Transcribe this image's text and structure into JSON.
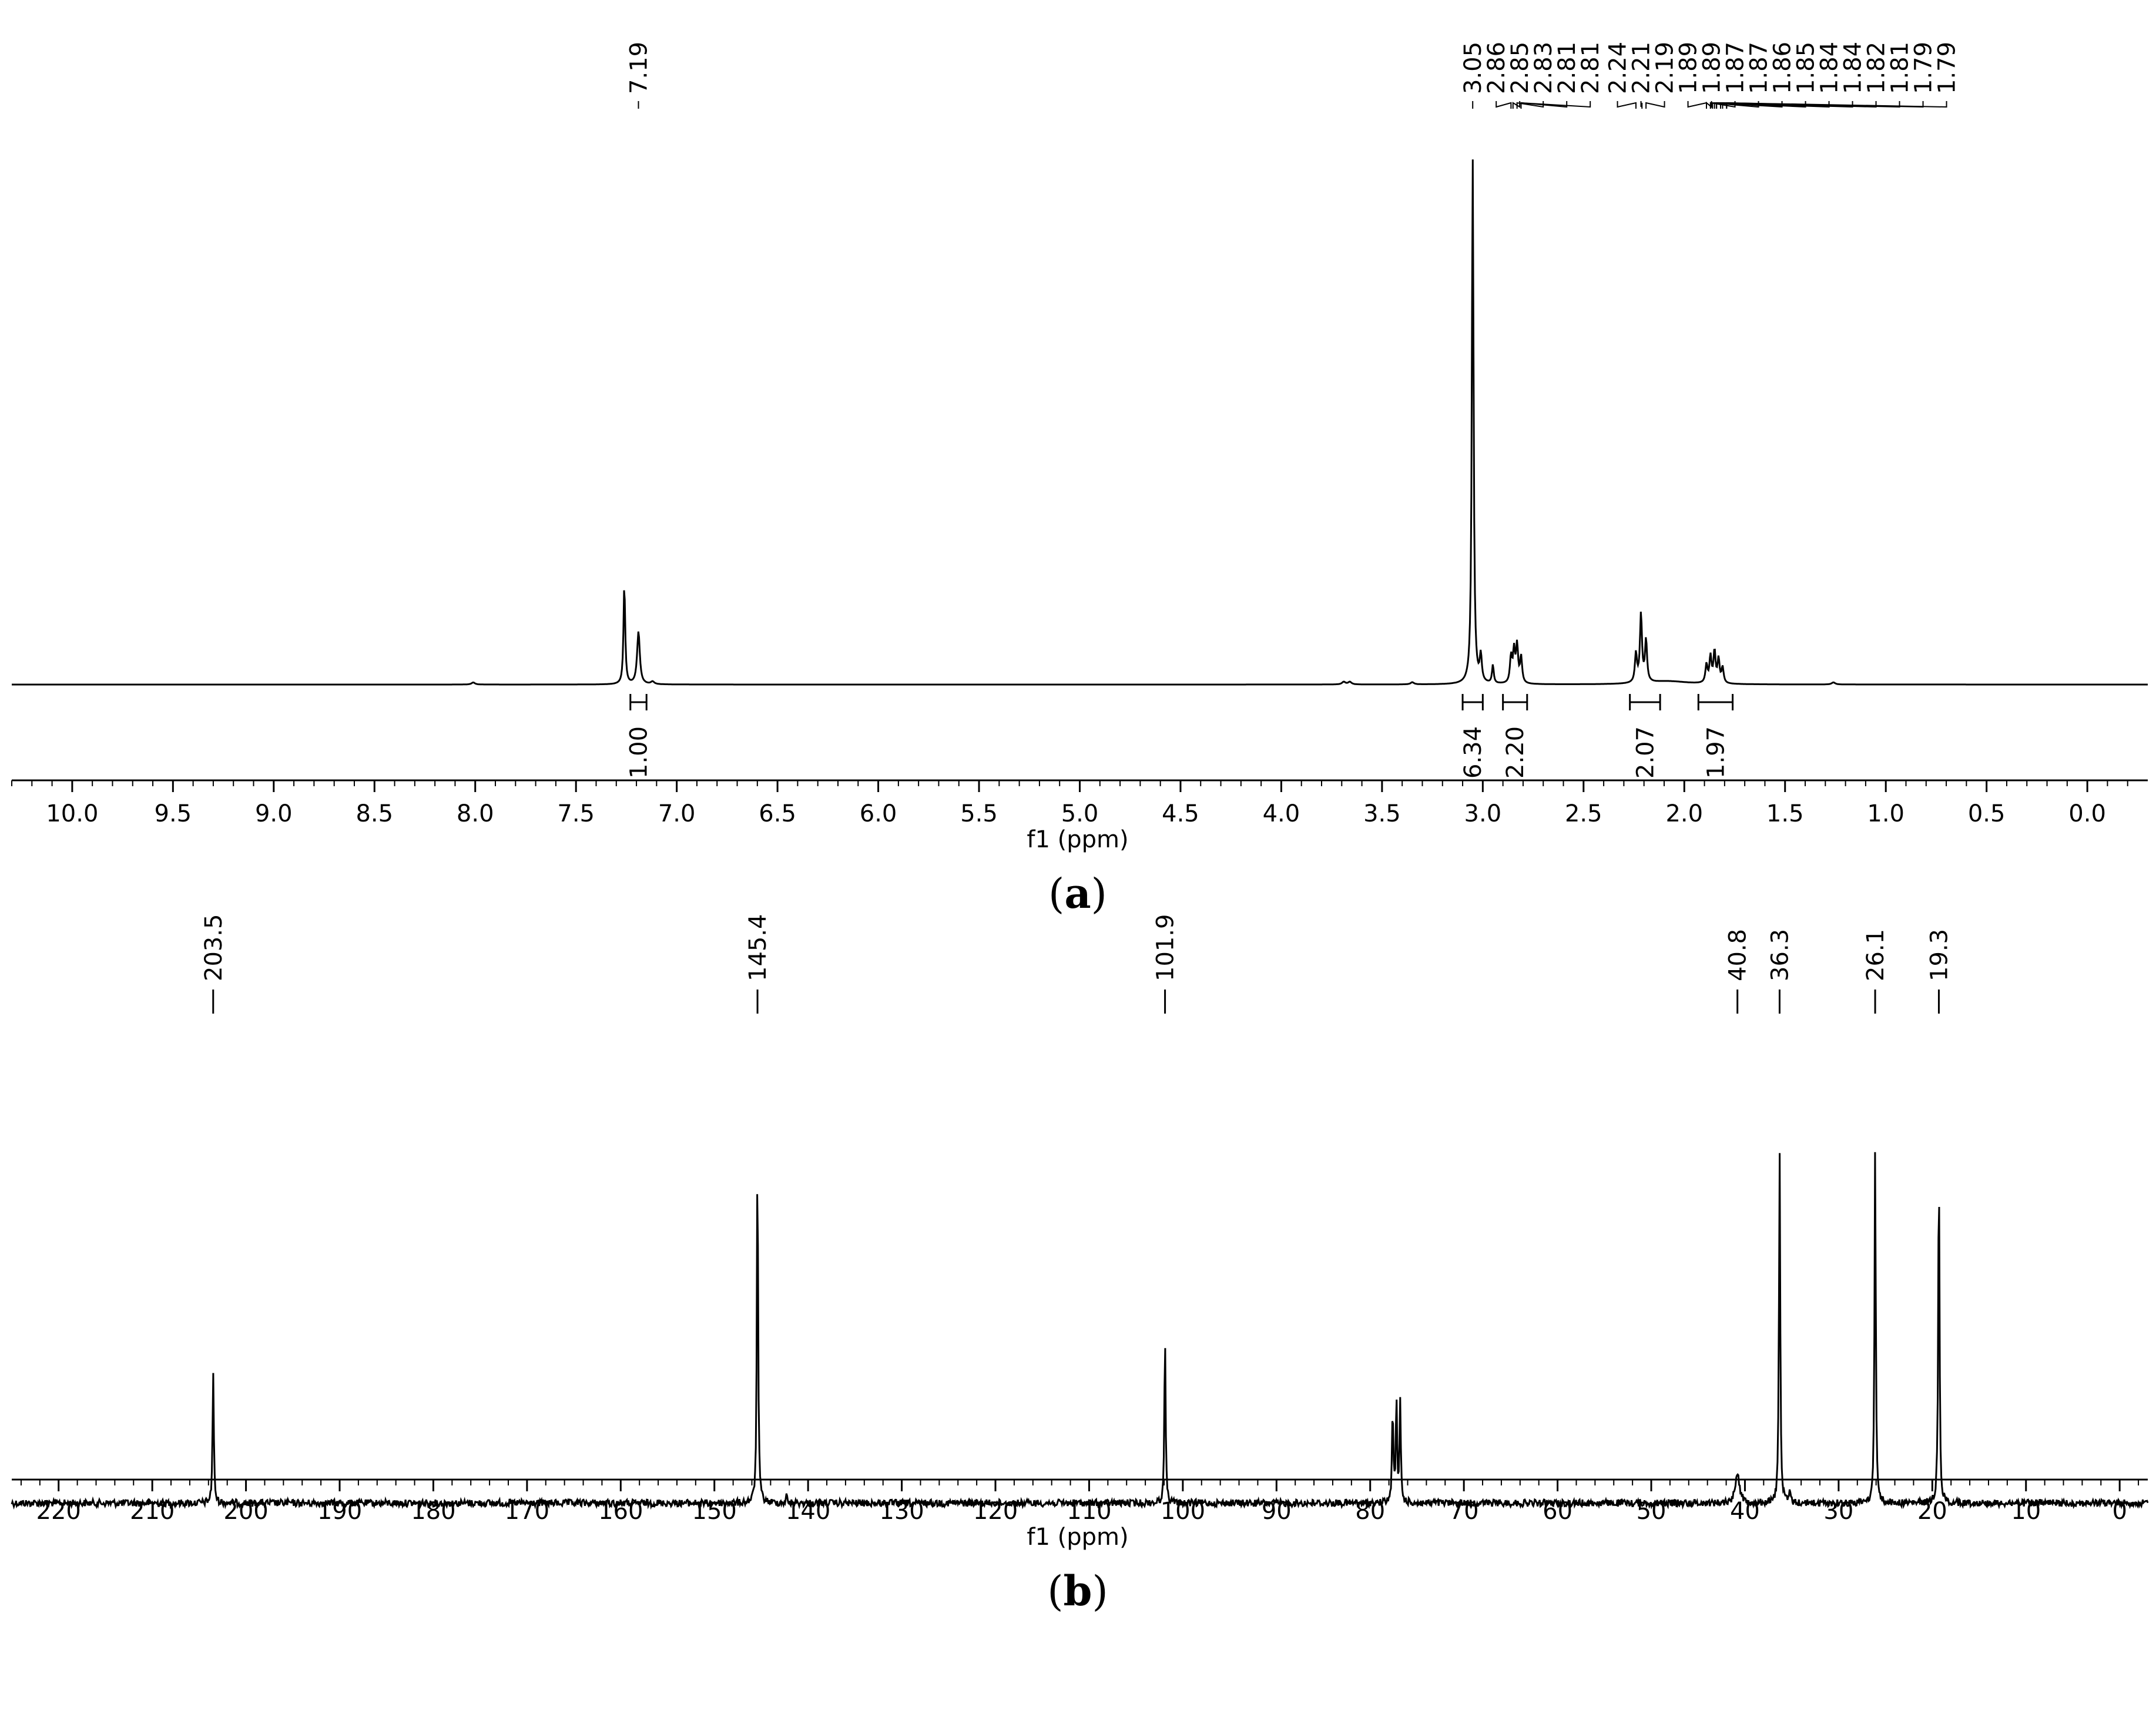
{
  "chart_data": [
    {
      "type": "line",
      "panel_label": "(a)",
      "panel_letter": "a",
      "xlabel": "f1 (ppm)",
      "xlim": [
        10.3,
        -0.3
      ],
      "x_reversed": true,
      "tick_values": [
        10.0,
        9.5,
        9.0,
        8.5,
        8.0,
        7.5,
        7.0,
        6.5,
        6.0,
        5.5,
        5.0,
        4.5,
        4.0,
        3.5,
        3.0,
        2.5,
        2.0,
        1.5,
        1.0,
        0.5,
        0.0
      ],
      "tick_labels": [
        "10.0",
        "9.5",
        "9.0",
        "8.5",
        "8.0",
        "7.5",
        "7.0",
        "6.5",
        "6.0",
        "5.5",
        "5.0",
        "4.5",
        "4.0",
        "3.5",
        "3.0",
        "2.5",
        "2.0",
        "1.5",
        "1.0",
        "0.5",
        "0.0"
      ],
      "peak_labels": [
        {
          "value": 7.19,
          "label": "7.19"
        },
        {
          "value": 3.05,
          "label": "3.05"
        },
        {
          "value": 2.86,
          "label": "2.86"
        },
        {
          "value": 2.85,
          "label": "2.85"
        },
        {
          "value": 2.83,
          "label": "2.83"
        },
        {
          "value": 2.81,
          "label": "2.81"
        },
        {
          "value": 2.81,
          "label": "2.81"
        },
        {
          "value": 2.24,
          "label": "2.24"
        },
        {
          "value": 2.21,
          "label": "2.21"
        },
        {
          "value": 2.19,
          "label": "2.19"
        },
        {
          "value": 1.89,
          "label": "1.89"
        },
        {
          "value": 1.89,
          "label": "1.89"
        },
        {
          "value": 1.87,
          "label": "1.87"
        },
        {
          "value": 1.87,
          "label": "1.87"
        },
        {
          "value": 1.86,
          "label": "1.86"
        },
        {
          "value": 1.85,
          "label": "1.85"
        },
        {
          "value": 1.84,
          "label": "1.84"
        },
        {
          "value": 1.84,
          "label": "1.84"
        },
        {
          "value": 1.82,
          "label": "1.82"
        },
        {
          "value": 1.81,
          "label": "1.81"
        },
        {
          "value": 1.79,
          "label": "1.79"
        },
        {
          "value": 1.79,
          "label": "1.79"
        }
      ],
      "integrations": [
        {
          "from": 7.23,
          "to": 7.15,
          "label": "1.00"
        },
        {
          "from": 3.1,
          "to": 3.0,
          "label": "6.34"
        },
        {
          "from": 2.9,
          "to": 2.78,
          "label": "2.20"
        },
        {
          "from": 2.27,
          "to": 2.12,
          "label": "2.07"
        },
        {
          "from": 1.93,
          "to": 1.76,
          "label": "1.97"
        }
      ],
      "peaks": [
        {
          "x": 7.26,
          "y": 0.19,
          "width": 0.005
        },
        {
          "x": 7.19,
          "y": 0.1,
          "width": 0.008
        },
        {
          "x": 8.01,
          "y": 0.004,
          "width": 0.01
        },
        {
          "x": 7.12,
          "y": 0.005,
          "width": 0.01
        },
        {
          "x": 3.69,
          "y": 0.005,
          "width": 0.01
        },
        {
          "x": 3.66,
          "y": 0.005,
          "width": 0.01
        },
        {
          "x": 3.35,
          "y": 0.004,
          "width": 0.01
        },
        {
          "x": 3.05,
          "y": 1.0,
          "width": 0.005
        },
        {
          "x": 3.01,
          "y": 0.05,
          "width": 0.006
        },
        {
          "x": 2.95,
          "y": 0.035,
          "width": 0.005
        },
        {
          "x": 2.86,
          "y": 0.05,
          "width": 0.006
        },
        {
          "x": 2.845,
          "y": 0.06,
          "width": 0.006
        },
        {
          "x": 2.83,
          "y": 0.07,
          "width": 0.006
        },
        {
          "x": 2.81,
          "y": 0.05,
          "width": 0.006
        },
        {
          "x": 2.24,
          "y": 0.055,
          "width": 0.006
        },
        {
          "x": 2.215,
          "y": 0.13,
          "width": 0.006
        },
        {
          "x": 2.19,
          "y": 0.08,
          "width": 0.006
        },
        {
          "x": 2.08,
          "y": 0.006,
          "width": 0.12
        },
        {
          "x": 1.89,
          "y": 0.035,
          "width": 0.006
        },
        {
          "x": 1.87,
          "y": 0.05,
          "width": 0.006
        },
        {
          "x": 1.85,
          "y": 0.06,
          "width": 0.006
        },
        {
          "x": 1.83,
          "y": 0.045,
          "width": 0.006
        },
        {
          "x": 1.81,
          "y": 0.03,
          "width": 0.006
        },
        {
          "x": 1.26,
          "y": 0.004,
          "width": 0.01
        }
      ]
    },
    {
      "type": "line",
      "panel_label": "(b)",
      "panel_letter": "b",
      "xlabel": "f1 (ppm)",
      "xlim": [
        225,
        -3
      ],
      "x_reversed": true,
      "tick_values": [
        220,
        210,
        200,
        190,
        180,
        170,
        160,
        150,
        140,
        130,
        120,
        110,
        100,
        90,
        80,
        70,
        60,
        50,
        40,
        30,
        20,
        10,
        0
      ],
      "tick_labels": [
        "220",
        "210",
        "200",
        "190",
        "180",
        "170",
        "160",
        "150",
        "140",
        "130",
        "120",
        "110",
        "100",
        "90",
        "80",
        "70",
        "60",
        "50",
        "40",
        "30",
        "20",
        "10",
        "0"
      ],
      "peak_labels": [
        {
          "value": 203.5,
          "label": "203.5"
        },
        {
          "value": 145.4,
          "label": "145.4"
        },
        {
          "value": 101.9,
          "label": "101.9"
        },
        {
          "value": 40.8,
          "label": "40.8"
        },
        {
          "value": 36.3,
          "label": "36.3"
        },
        {
          "value": 26.1,
          "label": "26.1"
        },
        {
          "value": 19.3,
          "label": "19.3"
        }
      ],
      "peaks": [
        {
          "x": 203.5,
          "y": 0.37,
          "width": 0.08
        },
        {
          "x": 145.4,
          "y": 0.98,
          "width": 0.08
        },
        {
          "x": 142.3,
          "y": 0.02,
          "width": 0.08
        },
        {
          "x": 101.9,
          "y": 0.47,
          "width": 0.08
        },
        {
          "x": 77.6,
          "y": 0.27,
          "width": 0.08
        },
        {
          "x": 77.2,
          "y": 0.28,
          "width": 0.08
        },
        {
          "x": 76.8,
          "y": 0.28,
          "width": 0.08
        },
        {
          "x": 40.8,
          "y": 0.09,
          "width": 0.25
        },
        {
          "x": 36.3,
          "y": 0.99,
          "width": 0.08
        },
        {
          "x": 35.2,
          "y": 0.03,
          "width": 0.08
        },
        {
          "x": 26.1,
          "y": 1.0,
          "width": 0.08
        },
        {
          "x": 19.3,
          "y": 0.97,
          "width": 0.08
        }
      ]
    }
  ]
}
